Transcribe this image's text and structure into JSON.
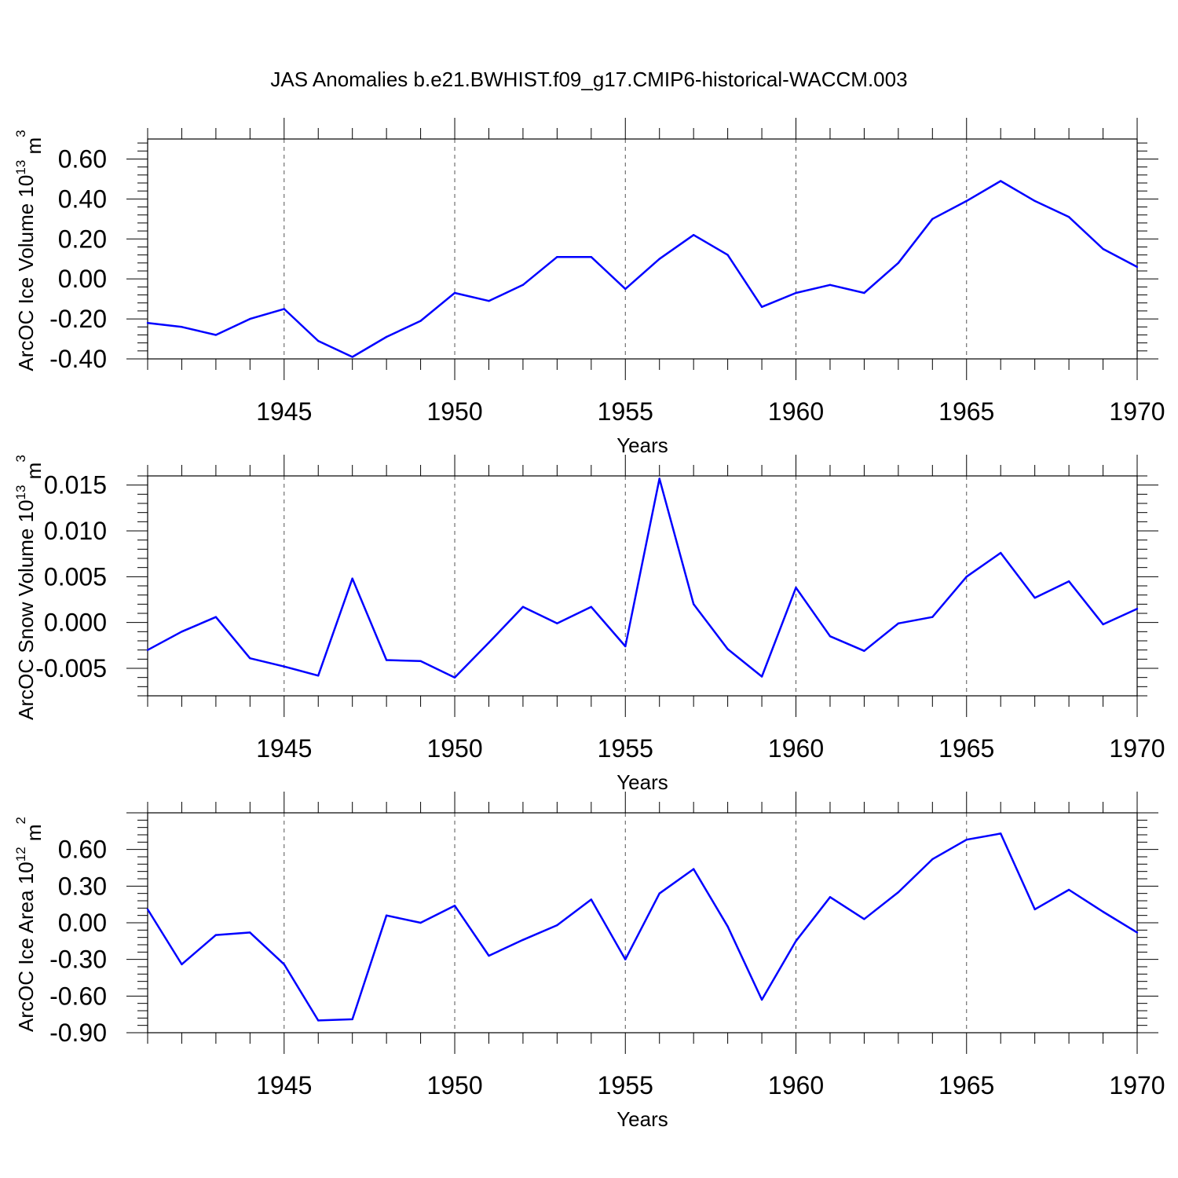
{
  "title": "JAS Anomalies b.e21.BWHIST.f09_g17.CMIP6-historical-WACCM.003",
  "line_color": "#0000ff",
  "chart_data": [
    {
      "type": "line",
      "xlabel": "Years",
      "ylabel": {
        "text": "ArcOC Ice Volume 10",
        "exp": "13",
        "unit": " m",
        "unit_exp": "3"
      },
      "xlim": [
        1941,
        1970
      ],
      "ylim": [
        -0.4,
        0.7
      ],
      "x_ticks": [
        "1945",
        "1950",
        "1955",
        "1960",
        "1965",
        "1970"
      ],
      "y_ticks": [
        "-0.40",
        "-0.20",
        "0.00",
        "0.20",
        "0.40",
        "0.60"
      ],
      "grid": "dashed vertical lines at major x ticks",
      "x": [
        1941,
        1942,
        1943,
        1944,
        1945,
        1946,
        1947,
        1948,
        1949,
        1950,
        1951,
        1952,
        1953,
        1954,
        1955,
        1956,
        1957,
        1958,
        1959,
        1960,
        1961,
        1962,
        1963,
        1964,
        1965,
        1966,
        1967,
        1968,
        1969,
        1970
      ],
      "values": [
        -0.22,
        -0.24,
        -0.28,
        -0.2,
        -0.15,
        -0.31,
        -0.39,
        -0.29,
        -0.21,
        -0.07,
        -0.11,
        -0.03,
        0.11,
        0.11,
        -0.05,
        0.1,
        0.22,
        0.12,
        -0.14,
        -0.07,
        -0.03,
        -0.07,
        0.08,
        0.3,
        0.39,
        0.49,
        0.39,
        0.31,
        0.15,
        0.06
      ]
    },
    {
      "type": "line",
      "xlabel": "Years",
      "ylabel": {
        "text": "ArcOC Snow Volume 10",
        "exp": "13",
        "unit": " m",
        "unit_exp": "3"
      },
      "xlim": [
        1941,
        1970
      ],
      "ylim": [
        -0.008,
        0.016
      ],
      "x_ticks": [
        "1945",
        "1950",
        "1955",
        "1960",
        "1965",
        "1970"
      ],
      "y_ticks": [
        "-0.005",
        "0.000",
        "0.005",
        "0.010",
        "0.015"
      ],
      "grid": "dashed vertical lines at major x ticks",
      "x": [
        1941,
        1942,
        1943,
        1944,
        1945,
        1946,
        1947,
        1948,
        1949,
        1950,
        1951,
        1952,
        1953,
        1954,
        1955,
        1956,
        1957,
        1958,
        1959,
        1960,
        1961,
        1962,
        1963,
        1964,
        1965,
        1966,
        1967,
        1968,
        1969,
        1970
      ],
      "values": [
        -0.003,
        -0.001,
        0.0006,
        -0.0039,
        -0.0048,
        -0.0058,
        0.0048,
        -0.0041,
        -0.0042,
        -0.006,
        -0.0022,
        0.0017,
        -0.0001,
        0.0017,
        -0.0026,
        0.0157,
        0.002,
        -0.0029,
        -0.0059,
        0.0038,
        -0.0015,
        -0.0031,
        -0.0001,
        0.0006,
        0.005,
        0.0076,
        0.0027,
        0.0045,
        -0.0002,
        0.0015
      ]
    },
    {
      "type": "line",
      "xlabel": "Years",
      "ylabel": {
        "text": "ArcOC Ice Area 10",
        "exp": "12",
        "unit": " m",
        "unit_exp": "2"
      },
      "xlim": [
        1941,
        1970
      ],
      "ylim": [
        -0.9,
        0.9
      ],
      "x_ticks": [
        "1945",
        "1950",
        "1955",
        "1960",
        "1965",
        "1970"
      ],
      "y_ticks": [
        "-0.90",
        "-0.60",
        "-0.30",
        "0.00",
        "0.30",
        "0.60"
      ],
      "grid": "dashed vertical lines at major x ticks",
      "x": [
        1941,
        1942,
        1943,
        1944,
        1945,
        1946,
        1947,
        1948,
        1949,
        1950,
        1951,
        1952,
        1953,
        1954,
        1955,
        1956,
        1957,
        1958,
        1959,
        1960,
        1961,
        1962,
        1963,
        1964,
        1965,
        1966,
        1967,
        1968,
        1969,
        1970
      ],
      "values": [
        0.11,
        -0.34,
        -0.1,
        -0.08,
        -0.34,
        -0.8,
        -0.79,
        0.06,
        0.0,
        0.14,
        -0.27,
        -0.14,
        -0.02,
        0.19,
        -0.3,
        0.24,
        0.44,
        -0.03,
        -0.63,
        -0.15,
        0.21,
        0.03,
        0.25,
        0.52,
        0.68,
        0.73,
        0.11,
        0.27,
        0.09,
        -0.08
      ]
    }
  ]
}
